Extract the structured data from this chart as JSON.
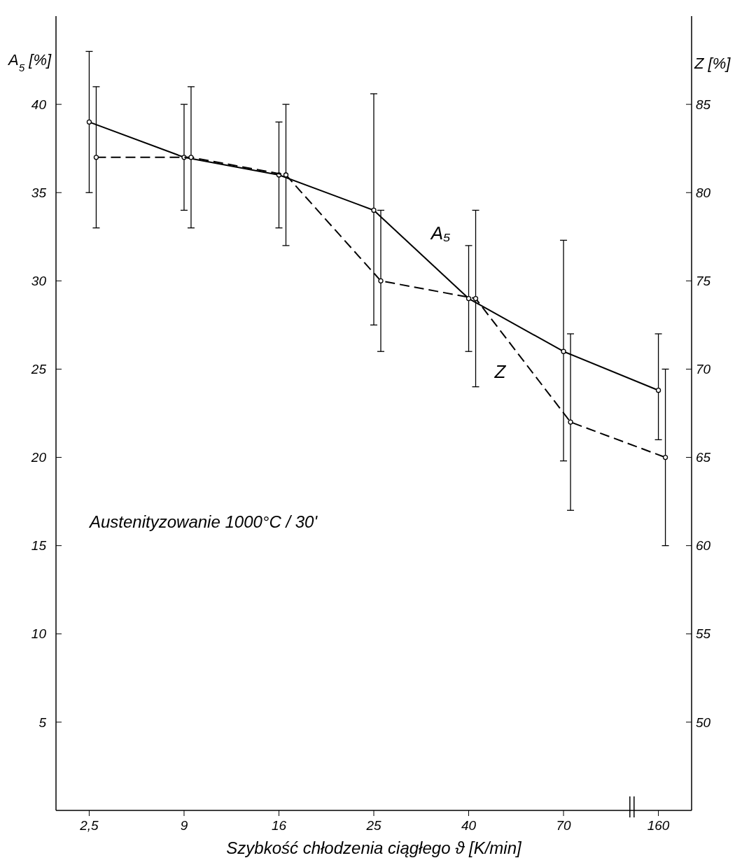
{
  "chart_data": {
    "type": "line",
    "categories": [
      "2,5",
      "9",
      "16",
      "25",
      "40",
      "70",
      "160"
    ],
    "xlabel": "Szybkość chłodzenia ciągłego  ϑ [K/min]",
    "ylabel": "A$_{5}$ [%]",
    "y2label": "Z [%]",
    "ylim": [
      0,
      45
    ],
    "yticks": [
      5,
      10,
      15,
      20,
      25,
      30,
      35,
      40
    ],
    "y2lim": [
      45,
      90
    ],
    "y2ticks": [
      50,
      55,
      60,
      65,
      70,
      75,
      80,
      85
    ],
    "grid": false,
    "marker": "circle",
    "series": [
      {
        "name": "A₅",
        "color": "#000000",
        "line_style": "solid",
        "values": [
          39,
          37,
          36,
          34,
          29,
          26,
          23.8
        ],
        "errors": [
          [
            35,
            43
          ],
          [
            34,
            40
          ],
          [
            33,
            39
          ],
          [
            27.5,
            40.6
          ],
          [
            26,
            32
          ],
          [
            19.8,
            32.3
          ],
          [
            21,
            27
          ]
        ]
      },
      {
        "name": "Z",
        "color": "#000000",
        "line_style": "dashed",
        "axis": "y2",
        "values": [
          82,
          82,
          81,
          75,
          74,
          67,
          65
        ],
        "errors": [
          [
            78,
            86
          ],
          [
            78,
            86
          ],
          [
            77,
            85
          ],
          [
            71,
            79
          ],
          [
            69,
            79
          ],
          [
            62,
            72
          ],
          [
            60,
            70
          ]
        ]
      }
    ],
    "annotations": [
      "Austenityzowanie 1000°C / 30'"
    ]
  }
}
